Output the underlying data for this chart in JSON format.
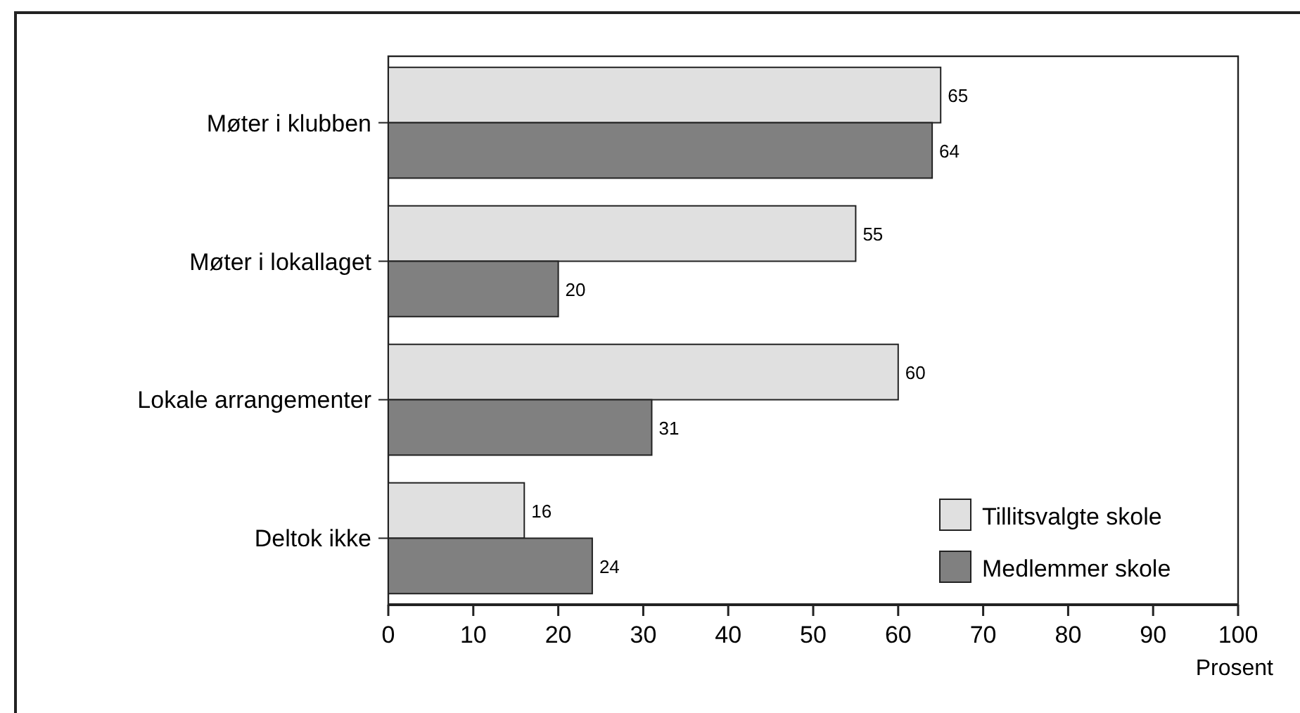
{
  "chart_data": {
    "type": "bar",
    "orientation": "horizontal",
    "categories": [
      "Møter i klubben",
      "Møter i lokallaget",
      "Lokale arrangementer",
      "Deltok ikke"
    ],
    "series": [
      {
        "name": "Tillitsvalgte skole",
        "color": "#e0e0e0",
        "values": [
          65,
          55,
          60,
          16
        ]
      },
      {
        "name": "Medlemmer skole",
        "color": "#808080",
        "values": [
          64,
          20,
          31,
          24
        ]
      }
    ],
    "xlim": [
      0,
      100
    ],
    "xticks": [
      0,
      10,
      20,
      30,
      40,
      50,
      60,
      70,
      80,
      90,
      100
    ],
    "xlabel": "Prosent",
    "data_labels": true,
    "legend": "bottom right",
    "grid": false
  }
}
